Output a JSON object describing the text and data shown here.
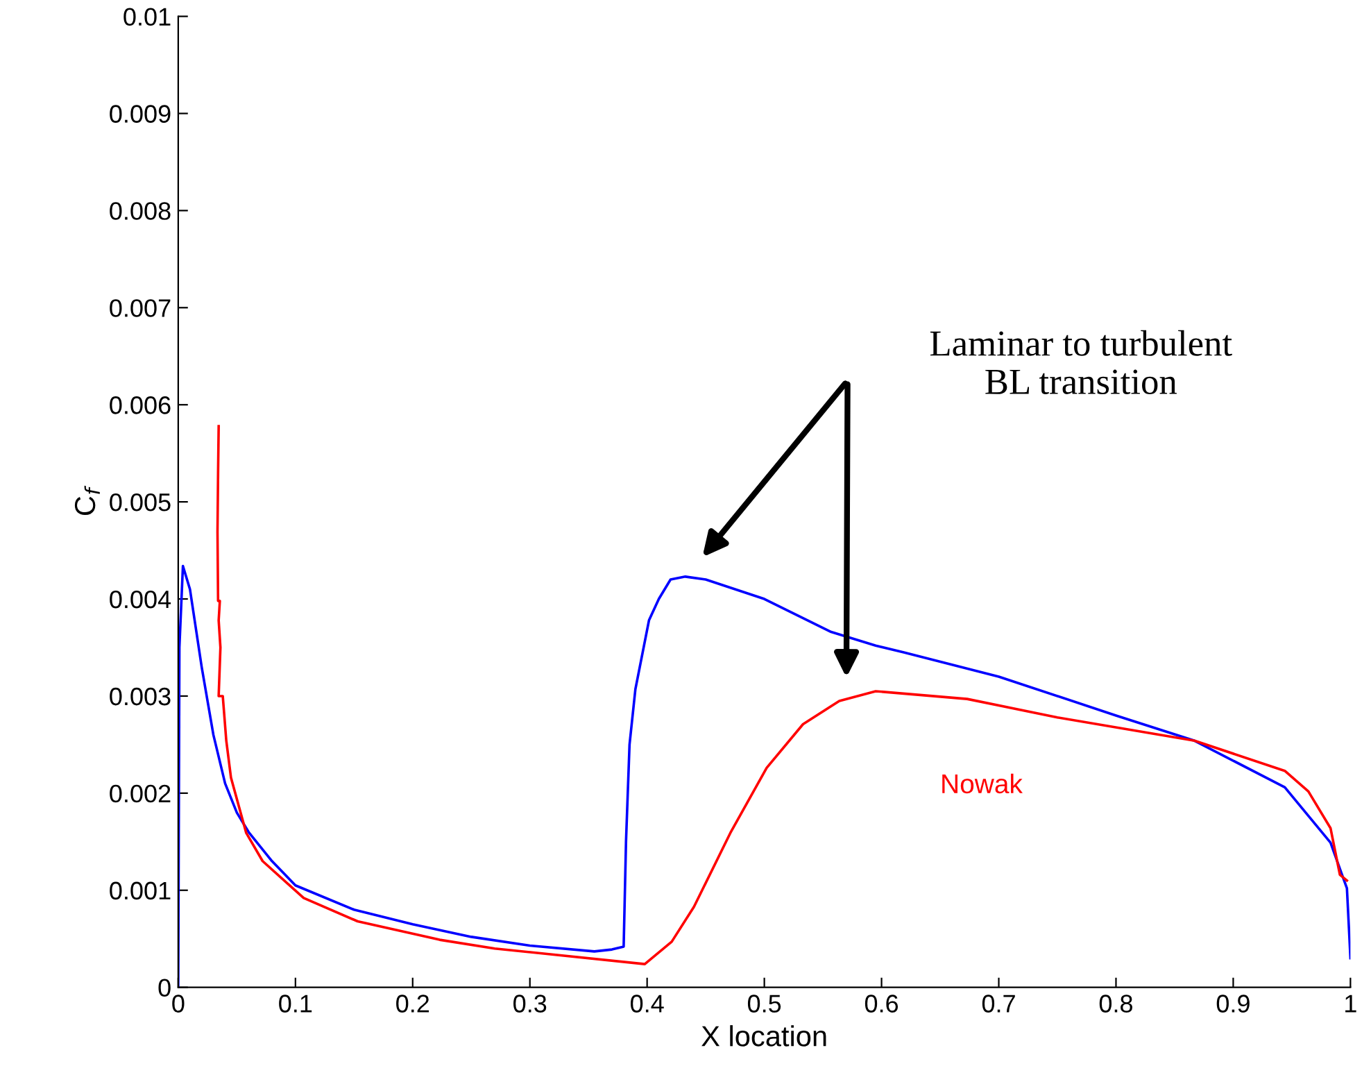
{
  "chart_data": {
    "type": "line",
    "xlabel": "X location",
    "ylabel": "C$_{f}$",
    "xlim": [
      0,
      1
    ],
    "ylim": [
      0,
      0.01
    ],
    "xticks": [
      0,
      0.1,
      0.2,
      0.3,
      0.4,
      0.5,
      0.6,
      0.7,
      0.8,
      0.9,
      1
    ],
    "yticks": [
      0,
      0.001,
      0.002,
      0.003,
      0.004,
      0.005,
      0.006,
      0.007,
      0.008,
      0.009,
      0.01
    ],
    "grid": false,
    "legend": false,
    "marker": "none",
    "line_style": "solid",
    "annotations": [
      "Laminar to turbulent\nBL transition"
    ],
    "series": [
      {
        "color": "#0000ff",
        "x": [
          0,
          0.001,
          0.004,
          0.01,
          0.02,
          0.03,
          0.04,
          0.05,
          0.06,
          0.08,
          0.1,
          0.15,
          0.2,
          0.25,
          0.3,
          0.355,
          0.37,
          0.38,
          0.382,
          0.385,
          0.39,
          0.4016,
          0.41,
          0.42,
          0.4326,
          0.45,
          0.5,
          0.557,
          0.595,
          0.619,
          0.7,
          0.8,
          0.867,
          0.944,
          0.983,
          0.997,
          1.0
        ],
        "values": [
          0,
          0.0035,
          0.00434,
          0.0041,
          0.0033,
          0.0026,
          0.0021,
          0.0018,
          0.0016,
          0.0013,
          0.00105,
          0.0008,
          0.00065,
          0.00052,
          0.00043,
          0.00037,
          0.00039,
          0.00042,
          0.0015,
          0.0025,
          0.00307,
          0.00378,
          0.004,
          0.0042,
          0.00423,
          0.0042,
          0.004,
          0.00366,
          0.00352,
          0.00345,
          0.0032,
          0.0028,
          0.00254,
          0.00206,
          0.00149,
          0.00102,
          0.0003
        ]
      },
      {
        "name": "Nowak",
        "color": "#ff0000",
        "x": [
          0.0345,
          0.034,
          0.0335,
          0.034,
          0.0355,
          0.0345,
          0.036,
          0.0345,
          0.038,
          0.041,
          0.045,
          0.058,
          0.072,
          0.107,
          0.153,
          0.223,
          0.27,
          0.398,
          0.421,
          0.44,
          0.471,
          0.502,
          0.533,
          0.564,
          0.595,
          0.673,
          0.75,
          0.867,
          0.944,
          0.964,
          0.966,
          0.983,
          0.991,
          0.997
        ],
        "values": [
          0.00578,
          0.0053,
          0.00469,
          0.00398,
          0.00398,
          0.00378,
          0.0035,
          0.003,
          0.003,
          0.00254,
          0.00216,
          0.00159,
          0.0013,
          0.00092,
          0.00068,
          0.00049,
          0.0004,
          0.00024,
          0.00047,
          0.00083,
          0.00159,
          0.00226,
          0.00271,
          0.00295,
          0.00305,
          0.00297,
          0.00278,
          0.00254,
          0.00223,
          0.00202,
          0.00198,
          0.00164,
          0.00116,
          0.0011
        ]
      }
    ]
  }
}
